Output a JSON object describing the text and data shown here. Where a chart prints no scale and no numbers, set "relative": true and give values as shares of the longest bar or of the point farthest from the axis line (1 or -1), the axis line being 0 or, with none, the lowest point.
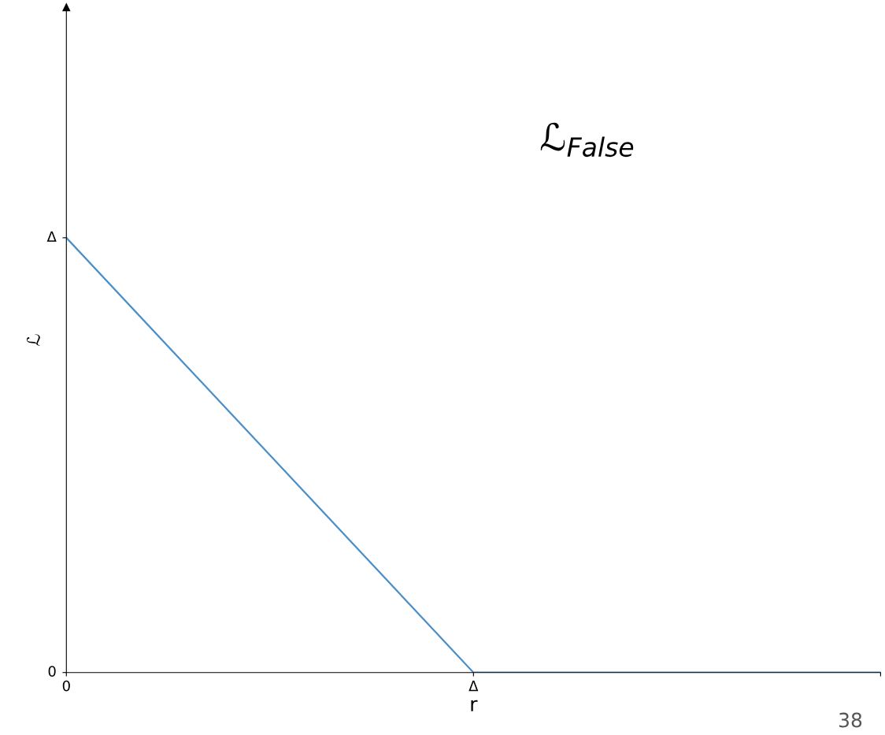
{
  "chart_data": {
    "type": "line",
    "xlabel": "r",
    "ylabel": "ℒ",
    "categories": [
      "0",
      "Δ",
      null
    ],
    "relative": true,
    "series": [
      {
        "color": "#4a8fc9",
        "values": [
          1,
          0,
          0
        ]
      }
    ],
    "grid": false,
    "marker": "none",
    "line_style": "solid",
    "annotations": [
      "ℒ$_{False}$",
      "38",
      "Δ",
      "0"
    ]
  }
}
